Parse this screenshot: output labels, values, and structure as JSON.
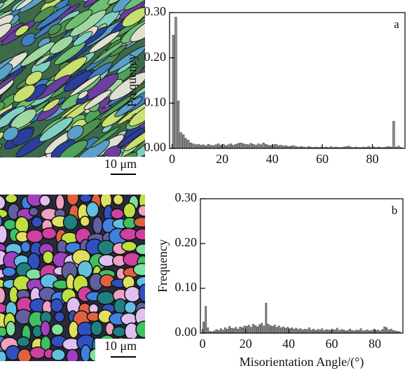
{
  "images": [
    {
      "scale_bar": "10 μm"
    },
    {
      "scale_bar": "10 μm"
    }
  ],
  "chart_data": [
    {
      "type": "histogram",
      "panel_label": "a",
      "ylabel": "Frequency",
      "color": "#8c8c8c",
      "bins": [
        0,
        1,
        2,
        3,
        4,
        5,
        6,
        7,
        8,
        9,
        10,
        11,
        12,
        13,
        14,
        15,
        16,
        17,
        18,
        19,
        20,
        21,
        22,
        23,
        24,
        25,
        26,
        27,
        28,
        29,
        30,
        31,
        32,
        33,
        34,
        35,
        36,
        37,
        38,
        39,
        40,
        41,
        42,
        43,
        44,
        45,
        46,
        47,
        48,
        49,
        50,
        51,
        52,
        53,
        54,
        55,
        56,
        57,
        58,
        59,
        60,
        61,
        62,
        63,
        64,
        65,
        66,
        67,
        68,
        69,
        70,
        71,
        72,
        73,
        74,
        75,
        76,
        77,
        78,
        79,
        80,
        81,
        82,
        83,
        84,
        85,
        86,
        87,
        88,
        89,
        90,
        91,
        92
      ],
      "values": [
        0.25,
        0.29,
        0.105,
        0.035,
        0.03,
        0.022,
        0.018,
        0.012,
        0.01,
        0.008,
        0.009,
        0.007,
        0.008,
        0.006,
        0.009,
        0.007,
        0.006,
        0.008,
        0.01,
        0.007,
        0.009,
        0.006,
        0.008,
        0.01,
        0.007,
        0.009,
        0.011,
        0.012,
        0.01,
        0.009,
        0.008,
        0.011,
        0.009,
        0.007,
        0.01,
        0.008,
        0.012,
        0.009,
        0.007,
        0.006,
        0.008,
        0.009,
        0.006,
        0.007,
        0.005,
        0.006,
        0.004,
        0.005,
        0.006,
        0.004,
        0.003,
        0.004,
        0.003,
        0.002,
        0.004,
        0.003,
        0.002,
        0.003,
        0.002,
        0.003,
        0.002,
        0.003,
        0.002,
        0.004,
        0.002,
        0.003,
        0.002,
        0.002,
        0.003,
        0.004,
        0.005,
        0.003,
        0.002,
        0.003,
        0.002,
        0.002,
        0.003,
        0.002,
        0.004,
        0.002,
        0.003,
        0.002,
        0.003,
        0.002,
        0.002,
        0.003,
        0.004,
        0.003,
        0.06,
        0.003,
        0.005,
        0.002
      ],
      "xlim": [
        -1,
        93
      ],
      "xticks": [
        0,
        20,
        40,
        60,
        80
      ],
      "ylim": [
        0,
        0.3
      ],
      "yticks": [
        {
          "value": 0,
          "label": "0.00"
        },
        {
          "value": 0.1,
          "label": "0.10"
        },
        {
          "value": 0.2,
          "label": "0.20"
        },
        {
          "value": 0.3,
          "label": "0.30"
        }
      ]
    },
    {
      "type": "histogram",
      "panel_label": "b",
      "ylabel": "Frequency",
      "xlabel": "Misorientation Angle/(°)",
      "color": "#8c8c8c",
      "bins": [
        0,
        1,
        2,
        3,
        4,
        5,
        6,
        7,
        8,
        9,
        10,
        11,
        12,
        13,
        14,
        15,
        16,
        17,
        18,
        19,
        20,
        21,
        22,
        23,
        24,
        25,
        26,
        27,
        28,
        29,
        30,
        31,
        32,
        33,
        34,
        35,
        36,
        37,
        38,
        39,
        40,
        41,
        42,
        43,
        44,
        45,
        46,
        47,
        48,
        49,
        50,
        51,
        52,
        53,
        54,
        55,
        56,
        57,
        58,
        59,
        60,
        61,
        62,
        63,
        64,
        65,
        66,
        67,
        68,
        69,
        70,
        71,
        72,
        73,
        74,
        75,
        76,
        77,
        78,
        79,
        80,
        81,
        82,
        83,
        84,
        85,
        86,
        87,
        88,
        89,
        90,
        91,
        92
      ],
      "values": [
        0.025,
        0.06,
        0.012,
        0.004,
        0.003,
        0.005,
        0.008,
        0.006,
        0.01,
        0.007,
        0.012,
        0.009,
        0.015,
        0.011,
        0.01,
        0.013,
        0.009,
        0.014,
        0.012,
        0.016,
        0.015,
        0.018,
        0.013,
        0.02,
        0.017,
        0.014,
        0.019,
        0.022,
        0.016,
        0.067,
        0.02,
        0.017,
        0.015,
        0.018,
        0.013,
        0.016,
        0.012,
        0.014,
        0.011,
        0.013,
        0.01,
        0.012,
        0.009,
        0.011,
        0.008,
        0.01,
        0.007,
        0.009,
        0.008,
        0.012,
        0.007,
        0.009,
        0.006,
        0.008,
        0.007,
        0.01,
        0.006,
        0.008,
        0.007,
        0.006,
        0.008,
        0.007,
        0.011,
        0.006,
        0.008,
        0.007,
        0.005,
        0.006,
        0.009,
        0.006,
        0.005,
        0.007,
        0.006,
        0.01,
        0.005,
        0.006,
        0.007,
        0.005,
        0.006,
        0.008,
        0.006,
        0.007,
        0.005,
        0.008,
        0.014,
        0.012,
        0.007,
        0.009,
        0.006,
        0.005,
        0.004,
        0.003
      ],
      "xlim": [
        -1,
        93
      ],
      "xticks": [
        0,
        20,
        40,
        60,
        80
      ],
      "ylim": [
        0,
        0.3
      ],
      "yticks": [
        {
          "value": 0,
          "label": "0.00"
        },
        {
          "value": 0.1,
          "label": "0.10"
        },
        {
          "value": 0.2,
          "label": "0.20"
        },
        {
          "value": 0.3,
          "label": "0.30"
        }
      ]
    }
  ]
}
